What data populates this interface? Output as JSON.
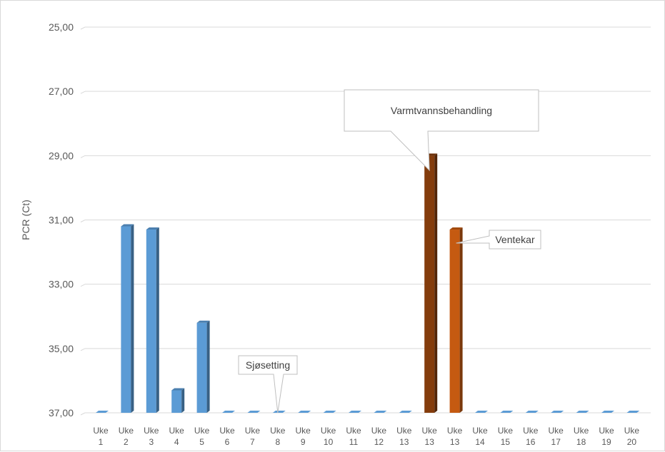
{
  "chart_data": {
    "type": "bar",
    "title": "",
    "xlabel": "",
    "ylabel": "PCR (Ct)",
    "y_axis_reversed": true,
    "ylim": [
      25,
      37
    ],
    "y_ticks": [
      "25,00",
      "27,00",
      "29,00",
      "31,00",
      "33,00",
      "35,00",
      "37,00"
    ],
    "grid": true,
    "style": "3d-columns",
    "categories": [
      [
        "Uke",
        "1"
      ],
      [
        "Uke",
        "2"
      ],
      [
        "Uke",
        "3"
      ],
      [
        "Uke",
        "4"
      ],
      [
        "Uke",
        "5"
      ],
      [
        "Uke",
        "6"
      ],
      [
        "Uke",
        "7"
      ],
      [
        "Uke",
        "8"
      ],
      [
        "Uke",
        "9"
      ],
      [
        "Uke",
        "10"
      ],
      [
        "Uke",
        "11"
      ],
      [
        "Uke",
        "12"
      ],
      [
        "Uke",
        "13"
      ],
      [
        "Uke",
        "13"
      ],
      [
        "Uke",
        "13"
      ],
      [
        "Uke",
        "14"
      ],
      [
        "Uke",
        "15"
      ],
      [
        "Uke",
        "16"
      ],
      [
        "Uke",
        "17"
      ],
      [
        "Uke",
        "18"
      ],
      [
        "Uke",
        "19"
      ],
      [
        "Uke",
        "20"
      ]
    ],
    "values": [
      37,
      31.2,
      31.3,
      36.3,
      34.2,
      37,
      37,
      37,
      37,
      37,
      37,
      37,
      37,
      29,
      31.3,
      37,
      37,
      37,
      37,
      37,
      37,
      37
    ],
    "colors": [
      "#5b9bd5",
      "#5b9bd5",
      "#5b9bd5",
      "#5b9bd5",
      "#5b9bd5",
      "#5b9bd5",
      "#5b9bd5",
      "#5b9bd5",
      "#5b9bd5",
      "#5b9bd5",
      "#5b9bd5",
      "#5b9bd5",
      "#5b9bd5",
      "#843c0c",
      "#c55a11",
      "#5b9bd5",
      "#5b9bd5",
      "#5b9bd5",
      "#5b9bd5",
      "#5b9bd5",
      "#5b9bd5",
      "#5b9bd5"
    ],
    "annotations": [
      {
        "text": "Varmtvannsbehandling",
        "target_index": 13
      },
      {
        "text": "Ventekar",
        "target_index": 14
      },
      {
        "text": "Sjøsetting",
        "target_index": 7
      }
    ]
  }
}
